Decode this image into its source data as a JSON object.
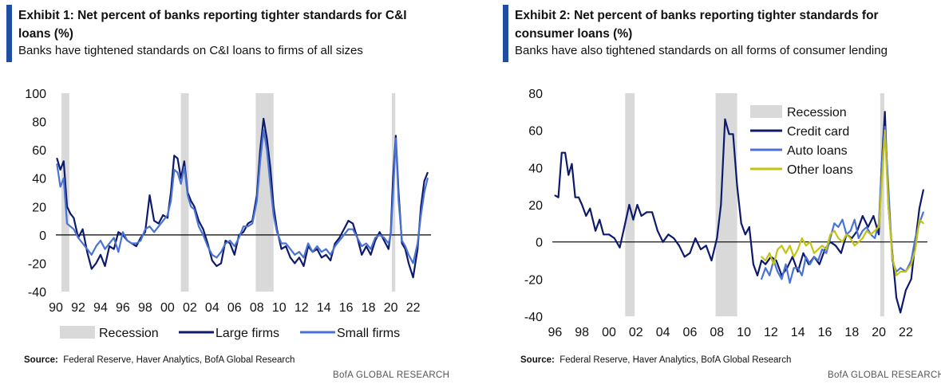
{
  "exhibit1": {
    "title": "Exhibit 1: Net percent of banks reporting tighter standards for C&I loans (%)",
    "subtitle": "Banks have tightened standards on C&I loans to firms of all sizes",
    "source_label": "Source:",
    "source_text": "Federal Reserve, Haver Analytics, BofA Global Research",
    "brand": "BofA GLOBAL RESEARCH"
  },
  "exhibit2": {
    "title": "Exhibit 2: Net percent of banks reporting tighter standards for consumer loans (%)",
    "subtitle": "Banks have also tightened standards on all forms of consumer lending",
    "source_label": "Source:",
    "source_text": "Federal Reserve, Haver Analytics, BofA Global Research",
    "brand": "BofA GLOBAL RESEARCH"
  },
  "colors": {
    "accent": "#1f4ea3",
    "recession": "#d9d9d9",
    "large_firms": "#0d1a6b",
    "small_firms": "#4a72d4",
    "credit_card": "#0d1a6b",
    "auto_loans": "#4a72d4",
    "other_loans": "#c4c410",
    "zero_line": "#000000"
  },
  "chart_data": [
    {
      "type": "line",
      "title": "Net percent of banks reporting tighter standards for C&I loans (%)",
      "xlabel": "",
      "ylabel": "",
      "xlim": [
        1990,
        2023.6
      ],
      "ylim": [
        -40,
        100
      ],
      "xticks": [
        1990,
        1992,
        1994,
        1996,
        1998,
        2000,
        2002,
        2004,
        2006,
        2008,
        2010,
        2012,
        2014,
        2016,
        2018,
        2020,
        2022
      ],
      "xtick_labels": [
        "90",
        "92",
        "94",
        "96",
        "98",
        "00",
        "02",
        "04",
        "06",
        "08",
        "10",
        "12",
        "14",
        "16",
        "18",
        "20",
        "22"
      ],
      "yticks": [
        -40,
        -20,
        0,
        20,
        40,
        60,
        80,
        100
      ],
      "ytick_labels": [
        "-40",
        "-20",
        "0",
        "20",
        "40",
        "60",
        "80",
        "100"
      ],
      "recessions": [
        [
          1990.5,
          1991.2
        ],
        [
          2001.2,
          2001.9
        ],
        [
          2007.9,
          2009.5
        ],
        [
          2020.1,
          2020.4
        ]
      ],
      "legend_labels": [
        "Recession",
        "Large firms",
        "Small firms"
      ],
      "legend_position": "bottom",
      "series": [
        {
          "name": "Large firms",
          "x": [
            1990.1,
            1990.4,
            1990.7,
            1991.0,
            1991.3,
            1991.6,
            1992.0,
            1992.4,
            1992.8,
            1993.2,
            1993.6,
            1994.0,
            1994.4,
            1994.8,
            1995.2,
            1995.6,
            1996.0,
            1996.4,
            1996.8,
            1997.2,
            1997.6,
            1998.0,
            1998.4,
            1998.8,
            1999.2,
            1999.6,
            2000.0,
            2000.3,
            2000.6,
            2000.9,
            2001.2,
            2001.5,
            2001.8,
            2002.1,
            2002.4,
            2002.8,
            2003.2,
            2003.6,
            2004.0,
            2004.4,
            2004.8,
            2005.2,
            2005.6,
            2006.0,
            2006.4,
            2006.8,
            2007.2,
            2007.6,
            2008.0,
            2008.3,
            2008.6,
            2008.9,
            2009.2,
            2009.5,
            2009.8,
            2010.2,
            2010.6,
            2011.0,
            2011.4,
            2011.8,
            2012.2,
            2012.6,
            2013.0,
            2013.4,
            2013.8,
            2014.2,
            2014.6,
            2015.0,
            2015.4,
            2015.8,
            2016.2,
            2016.6,
            2017.0,
            2017.4,
            2017.8,
            2018.2,
            2018.6,
            2019.0,
            2019.4,
            2019.8,
            2020.0,
            2020.2,
            2020.45,
            2020.7,
            2021.0,
            2021.3,
            2021.6,
            2022.0,
            2022.4,
            2022.7,
            2023.0,
            2023.3
          ],
          "values": [
            54,
            46,
            52,
            20,
            15,
            12,
            -2,
            4,
            -12,
            -24,
            -20,
            -14,
            -22,
            -8,
            -10,
            2,
            0,
            -4,
            -6,
            -8,
            -2,
            2,
            28,
            10,
            8,
            14,
            12,
            30,
            56,
            54,
            40,
            52,
            30,
            24,
            20,
            10,
            4,
            -6,
            -18,
            -22,
            -20,
            -4,
            -6,
            -14,
            0,
            2,
            8,
            10,
            28,
            60,
            82,
            68,
            48,
            20,
            4,
            -10,
            -8,
            -16,
            -20,
            -16,
            -22,
            -8,
            -12,
            -10,
            -16,
            -14,
            -18,
            -6,
            -2,
            4,
            10,
            8,
            -2,
            -14,
            -8,
            -14,
            -4,
            2,
            -4,
            -10,
            2,
            40,
            70,
            30,
            -6,
            -10,
            -20,
            -30,
            -10,
            20,
            38,
            44
          ]
        },
        {
          "name": "Small firms",
          "x": [
            1990.1,
            1990.4,
            1990.7,
            1991.0,
            1991.3,
            1991.6,
            1992.0,
            1992.4,
            1992.8,
            1993.2,
            1993.6,
            1994.0,
            1994.4,
            1994.8,
            1995.2,
            1995.6,
            1996.0,
            1996.4,
            1996.8,
            1997.2,
            1997.6,
            1998.0,
            1998.4,
            1998.8,
            1999.2,
            1999.6,
            2000.0,
            2000.3,
            2000.6,
            2000.9,
            2001.2,
            2001.5,
            2001.8,
            2002.1,
            2002.4,
            2002.8,
            2003.2,
            2003.6,
            2004.0,
            2004.4,
            2004.8,
            2005.2,
            2005.6,
            2006.0,
            2006.4,
            2006.8,
            2007.2,
            2007.6,
            2008.0,
            2008.3,
            2008.6,
            2008.9,
            2009.2,
            2009.5,
            2009.8,
            2010.2,
            2010.6,
            2011.0,
            2011.4,
            2011.8,
            2012.2,
            2012.6,
            2013.0,
            2013.4,
            2013.8,
            2014.2,
            2014.6,
            2015.0,
            2015.4,
            2015.8,
            2016.2,
            2016.6,
            2017.0,
            2017.4,
            2017.8,
            2018.2,
            2018.6,
            2019.0,
            2019.4,
            2019.8,
            2020.0,
            2020.2,
            2020.45,
            2020.7,
            2021.0,
            2021.3,
            2021.6,
            2022.0,
            2022.4,
            2022.7,
            2023.0,
            2023.3
          ],
          "values": [
            50,
            34,
            40,
            8,
            6,
            4,
            -2,
            -6,
            -10,
            -14,
            -8,
            -4,
            -10,
            -6,
            -2,
            -12,
            2,
            -4,
            -6,
            -6,
            -4,
            4,
            6,
            2,
            6,
            10,
            14,
            24,
            46,
            44,
            36,
            48,
            28,
            20,
            18,
            6,
            0,
            -8,
            -14,
            -16,
            -12,
            -6,
            -4,
            -8,
            -2,
            6,
            6,
            8,
            24,
            52,
            74,
            60,
            36,
            14,
            2,
            -6,
            -6,
            -10,
            -14,
            -12,
            -16,
            -6,
            -12,
            -8,
            -12,
            -10,
            -14,
            -8,
            -4,
            0,
            4,
            4,
            -2,
            -8,
            -6,
            -10,
            -2,
            0,
            -2,
            -6,
            0,
            28,
            68,
            24,
            -4,
            -8,
            -14,
            -20,
            -6,
            14,
            30,
            40
          ]
        }
      ]
    },
    {
      "type": "line",
      "title": "Net percent of banks reporting tighter standards for consumer loans (%)",
      "xlabel": "",
      "ylabel": "",
      "xlim": [
        1995.8,
        2023.6
      ],
      "ylim": [
        -40,
        80
      ],
      "xticks": [
        1996,
        1998,
        2000,
        2002,
        2004,
        2006,
        2008,
        2010,
        2012,
        2014,
        2016,
        2018,
        2020,
        2022
      ],
      "xtick_labels": [
        "96",
        "98",
        "00",
        "02",
        "04",
        "06",
        "08",
        "10",
        "12",
        "14",
        "16",
        "18",
        "20",
        "22"
      ],
      "yticks": [
        -40,
        -20,
        0,
        20,
        40,
        60,
        80
      ],
      "ytick_labels": [
        "-40",
        "-20",
        "0",
        "20",
        "40",
        "60",
        "80"
      ],
      "recessions": [
        [
          2001.2,
          2001.9
        ],
        [
          2007.9,
          2009.5
        ],
        [
          2020.1,
          2020.4
        ]
      ],
      "legend_labels": [
        "Recession",
        "Credit card",
        "Auto loans",
        "Other loans"
      ],
      "legend_position": "top-right",
      "series": [
        {
          "name": "Credit card",
          "x": [
            1996.0,
            1996.25,
            1996.5,
            1996.75,
            1997.0,
            1997.25,
            1997.5,
            1997.75,
            1998.0,
            1998.3,
            1998.6,
            1999.0,
            1999.3,
            1999.6,
            2000.0,
            2000.4,
            2000.8,
            2001.2,
            2001.5,
            2001.8,
            2002.1,
            2002.4,
            2002.8,
            2003.2,
            2003.6,
            2004.0,
            2004.4,
            2004.8,
            2005.2,
            2005.6,
            2006.0,
            2006.4,
            2006.8,
            2007.2,
            2007.6,
            2008.0,
            2008.3,
            2008.6,
            2008.9,
            2009.2,
            2009.5,
            2009.8,
            2010.1,
            2010.4,
            2010.7,
            2011.0,
            2011.3,
            2011.6,
            2012.0,
            2012.4,
            2012.8,
            2013.2,
            2013.6,
            2014.0,
            2014.4,
            2014.8,
            2015.2,
            2015.6,
            2016.0,
            2016.4,
            2016.8,
            2017.2,
            2017.6,
            2018.0,
            2018.4,
            2018.8,
            2019.2,
            2019.6,
            2020.0,
            2020.2,
            2020.45,
            2020.7,
            2021.0,
            2021.3,
            2021.6,
            2022.0,
            2022.4,
            2022.7,
            2023.0,
            2023.3
          ],
          "values": [
            25,
            24,
            48,
            48,
            36,
            42,
            24,
            24,
            20,
            14,
            18,
            6,
            12,
            4,
            4,
            2,
            -3,
            10,
            20,
            12,
            20,
            14,
            16,
            16,
            6,
            0,
            4,
            2,
            -2,
            -8,
            -6,
            2,
            -4,
            -2,
            -10,
            2,
            20,
            66,
            58,
            58,
            30,
            10,
            4,
            8,
            -12,
            -18,
            -10,
            -12,
            -8,
            -10,
            -18,
            -14,
            -8,
            -16,
            -6,
            -12,
            -8,
            -12,
            -4,
            0,
            -2,
            -6,
            4,
            2,
            6,
            14,
            8,
            14,
            4,
            40,
            70,
            20,
            -6,
            -30,
            -38,
            -26,
            -20,
            0,
            18,
            28
          ]
        },
        {
          "name": "Auto loans",
          "x": [
            2011.3,
            2011.6,
            2011.9,
            2012.2,
            2012.5,
            2012.8,
            2013.1,
            2013.4,
            2013.7,
            2014.0,
            2014.3,
            2014.6,
            2014.9,
            2015.2,
            2015.5,
            2015.8,
            2016.1,
            2016.4,
            2016.7,
            2017.0,
            2017.3,
            2017.6,
            2017.9,
            2018.2,
            2018.5,
            2018.8,
            2019.1,
            2019.4,
            2019.7,
            2020.0,
            2020.2,
            2020.45,
            2020.7,
            2021.0,
            2021.3,
            2021.6,
            2022.0,
            2022.4,
            2022.7,
            2023.0,
            2023.3
          ],
          "values": [
            -20,
            -14,
            -18,
            -10,
            -16,
            -20,
            -12,
            -22,
            -14,
            -14,
            -18,
            -8,
            -12,
            -8,
            -10,
            -4,
            -6,
            2,
            10,
            8,
            12,
            4,
            6,
            12,
            2,
            6,
            8,
            4,
            2,
            10,
            40,
            62,
            30,
            -10,
            -16,
            -14,
            -16,
            -10,
            2,
            10,
            16
          ]
        },
        {
          "name": "Other loans",
          "x": [
            2011.3,
            2011.6,
            2011.9,
            2012.2,
            2012.5,
            2012.8,
            2013.1,
            2013.4,
            2013.7,
            2014.0,
            2014.3,
            2014.6,
            2014.9,
            2015.2,
            2015.5,
            2015.8,
            2016.1,
            2016.4,
            2016.7,
            2017.0,
            2017.3,
            2017.6,
            2017.9,
            2018.2,
            2018.5,
            2018.8,
            2019.1,
            2019.4,
            2019.7,
            2020.0,
            2020.2,
            2020.45,
            2020.7,
            2021.0,
            2021.3,
            2021.6,
            2022.0,
            2022.4,
            2022.7,
            2023.0,
            2023.3
          ],
          "values": [
            -8,
            -10,
            -6,
            -12,
            -4,
            -2,
            -6,
            -2,
            -8,
            -4,
            2,
            -2,
            0,
            -6,
            -4,
            -2,
            -4,
            4,
            6,
            2,
            0,
            4,
            2,
            -2,
            0,
            2,
            6,
            4,
            6,
            8,
            30,
            60,
            20,
            -8,
            -18,
            -16,
            -16,
            -12,
            -4,
            12,
            10
          ]
        }
      ]
    }
  ]
}
